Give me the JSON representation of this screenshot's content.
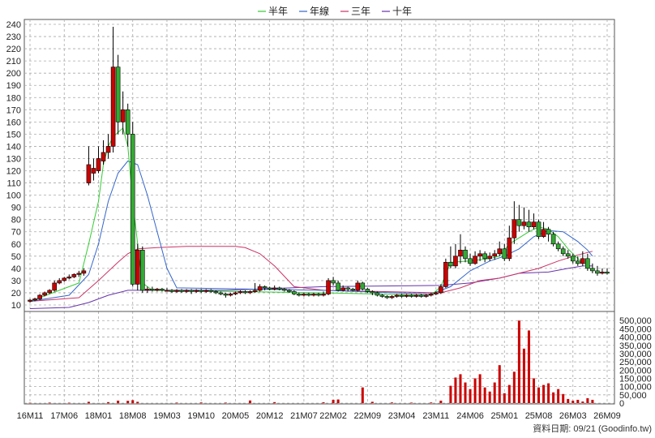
{
  "chart_data": {
    "type": "candlestick",
    "legend": [
      {
        "name": "半年",
        "color": "#33cc33"
      },
      {
        "name": "年線",
        "color": "#3366cc"
      },
      {
        "name": "三年",
        "color": "#cc3366"
      },
      {
        "name": "十年",
        "color": "#6633aa"
      }
    ],
    "legend_placement": "top-center",
    "grid": true,
    "price_axis": {
      "ylim": [
        0,
        240
      ],
      "ticks": [
        10,
        20,
        30,
        40,
        50,
        60,
        70,
        80,
        90,
        100,
        110,
        120,
        130,
        140,
        150,
        160,
        170,
        180,
        190,
        200,
        210,
        220,
        230,
        240
      ]
    },
    "volume_axis": {
      "ylim": [
        0,
        560000
      ],
      "ticks": [
        0,
        50000,
        100000,
        150000,
        200000,
        250000,
        300000,
        350000,
        400000,
        450000,
        500000
      ],
      "tick_labels": [
        "0",
        "50,000",
        "100,000",
        "150,000",
        "200,000",
        "250,000",
        "300,000",
        "350,000",
        "400,000",
        "450,000",
        "500,000"
      ]
    },
    "x_ticks": [
      "16M11",
      "17M06",
      "18M01",
      "18M08",
      "19M03",
      "19M10",
      "20M05",
      "20M12",
      "21M07",
      "22M02",
      "22M09",
      "23M04",
      "23M11",
      "24M06",
      "25M01",
      "25M08",
      "26M03",
      "26M09"
    ],
    "candles": [
      [
        "16M11",
        13,
        14,
        12,
        15
      ],
      [
        "16M12",
        14,
        15,
        13,
        16
      ],
      [
        "17M01",
        15,
        18,
        14,
        19
      ],
      [
        "17M02",
        18,
        20,
        17,
        21
      ],
      [
        "17M03",
        20,
        22,
        19,
        23
      ],
      [
        "17M04",
        22,
        28,
        21,
        30
      ],
      [
        "17M05",
        28,
        30,
        27,
        32
      ],
      [
        "17M06",
        30,
        32,
        29,
        33
      ],
      [
        "17M07",
        32,
        33,
        31,
        35
      ],
      [
        "17M08",
        33,
        35,
        32,
        36
      ],
      [
        "17M09",
        35,
        36,
        33,
        38
      ],
      [
        "17M10",
        36,
        38,
        34,
        40
      ],
      [
        "17M11",
        110,
        125,
        108,
        140
      ],
      [
        "17M12",
        118,
        122,
        112,
        130
      ],
      [
        "18M01",
        120,
        130,
        118,
        140
      ],
      [
        "18M02",
        128,
        135,
        125,
        145
      ],
      [
        "18M03",
        135,
        140,
        130,
        150
      ],
      [
        "18M04",
        140,
        205,
        135,
        238
      ],
      [
        "18M05",
        205,
        160,
        150,
        215
      ],
      [
        "18M06",
        160,
        170,
        150,
        185
      ],
      [
        "18M07",
        170,
        150,
        140,
        175
      ],
      [
        "18M08",
        150,
        27,
        25,
        160
      ],
      [
        "18M09",
        27,
        55,
        22,
        60
      ],
      [
        "18M10",
        55,
        22,
        20,
        58
      ],
      [
        "18M11",
        22,
        23,
        20,
        25
      ],
      [
        "18M12",
        23,
        22,
        21,
        25
      ],
      [
        "19M01",
        22,
        23,
        21,
        24
      ],
      [
        "19M02",
        23,
        22,
        21,
        24
      ],
      [
        "19M03",
        22,
        22,
        21,
        24
      ],
      [
        "19M04",
        22,
        21,
        20,
        23
      ],
      [
        "19M05",
        21,
        22,
        20,
        23
      ],
      [
        "19M06",
        22,
        21,
        20,
        23
      ],
      [
        "19M07",
        21,
        22,
        20,
        23
      ],
      [
        "19M08",
        22,
        21,
        19,
        23
      ],
      [
        "19M09",
        21,
        22,
        20,
        23
      ],
      [
        "19M10",
        22,
        21,
        20,
        23
      ],
      [
        "19M11",
        21,
        22,
        20,
        23
      ],
      [
        "19M12",
        22,
        21,
        20,
        23
      ],
      [
        "20M01",
        21,
        20,
        19,
        22
      ],
      [
        "20M02",
        20,
        19,
        18,
        21
      ],
      [
        "20M03",
        19,
        18,
        16,
        20
      ],
      [
        "20M04",
        18,
        19,
        17,
        20
      ],
      [
        "20M05",
        19,
        20,
        18,
        21
      ],
      [
        "20M06",
        20,
        21,
        19,
        22
      ],
      [
        "20M07",
        21,
        20,
        19,
        22
      ],
      [
        "20M08",
        20,
        21,
        19,
        22
      ],
      [
        "20M09",
        21,
        22,
        20,
        28
      ],
      [
        "20M10",
        22,
        25,
        21,
        27
      ],
      [
        "20M11",
        25,
        24,
        22,
        26
      ],
      [
        "20M12",
        24,
        23,
        22,
        25
      ],
      [
        "21M01",
        23,
        24,
        22,
        26
      ],
      [
        "21M02",
        24,
        23,
        22,
        25
      ],
      [
        "21M03",
        23,
        22,
        21,
        24
      ],
      [
        "21M04",
        22,
        21,
        20,
        23
      ],
      [
        "21M05",
        21,
        19,
        18,
        22
      ],
      [
        "21M06",
        19,
        18,
        17,
        20
      ],
      [
        "21M07",
        18,
        19,
        17,
        20
      ],
      [
        "21M08",
        19,
        18,
        17,
        20
      ],
      [
        "21M09",
        18,
        19,
        17,
        20
      ],
      [
        "21M10",
        19,
        18,
        17,
        20
      ],
      [
        "21M11",
        18,
        19,
        17,
        21
      ],
      [
        "21M12",
        19,
        30,
        18,
        32
      ],
      [
        "22M01",
        30,
        28,
        26,
        33
      ],
      [
        "22M02",
        28,
        22,
        21,
        30
      ],
      [
        "22M03",
        22,
        24,
        21,
        26
      ],
      [
        "22M04",
        24,
        23,
        21,
        25
      ],
      [
        "22M05",
        23,
        22,
        21,
        24
      ],
      [
        "22M06",
        22,
        28,
        21,
        30
      ],
      [
        "22M07",
        28,
        23,
        22,
        29
      ],
      [
        "22M08",
        23,
        21,
        20,
        24
      ],
      [
        "22M09",
        21,
        20,
        18,
        22
      ],
      [
        "22M10",
        20,
        18,
        17,
        21
      ],
      [
        "22M11",
        18,
        17,
        16,
        19
      ],
      [
        "22M12",
        17,
        16,
        15,
        18
      ],
      [
        "23M01",
        16,
        17,
        15,
        18
      ],
      [
        "23M02",
        17,
        18,
        16,
        19
      ],
      [
        "23M03",
        18,
        17,
        16,
        19
      ],
      [
        "23M04",
        17,
        18,
        16,
        19
      ],
      [
        "23M05",
        18,
        17,
        16,
        19
      ],
      [
        "23M06",
        17,
        18,
        16,
        19
      ],
      [
        "23M07",
        18,
        17,
        16,
        19
      ],
      [
        "23M08",
        17,
        18,
        16,
        19
      ],
      [
        "23M09",
        18,
        19,
        17,
        20
      ],
      [
        "23M10",
        19,
        20,
        18,
        21
      ],
      [
        "23M11",
        20,
        25,
        19,
        27
      ],
      [
        "23M12",
        25,
        45,
        24,
        48
      ],
      [
        "24M01",
        45,
        42,
        40,
        58
      ],
      [
        "24M02",
        42,
        50,
        40,
        60
      ],
      [
        "24M03",
        50,
        55,
        44,
        68
      ],
      [
        "24M04",
        55,
        48,
        45,
        58
      ],
      [
        "24M05",
        48,
        44,
        42,
        52
      ],
      [
        "24M06",
        44,
        50,
        43,
        54
      ],
      [
        "24M07",
        50,
        52,
        46,
        55
      ],
      [
        "24M08",
        52,
        48,
        45,
        54
      ],
      [
        "24M09",
        48,
        50,
        46,
        53
      ],
      [
        "24M10",
        50,
        52,
        47,
        55
      ],
      [
        "24M11",
        52,
        56,
        50,
        62
      ],
      [
        "24M12",
        56,
        48,
        46,
        60
      ],
      [
        "25M01",
        48,
        65,
        46,
        75
      ],
      [
        "25M02",
        65,
        80,
        60,
        95
      ],
      [
        "25M03",
        80,
        75,
        70,
        92
      ],
      [
        "25M04",
        75,
        78,
        72,
        90
      ],
      [
        "25M05",
        78,
        74,
        70,
        88
      ],
      [
        "25M06",
        74,
        78,
        72,
        85
      ],
      [
        "25M07",
        78,
        66,
        64,
        80
      ],
      [
        "25M08",
        66,
        72,
        65,
        78
      ],
      [
        "25M09",
        72,
        68,
        62,
        74
      ],
      [
        "25M10",
        68,
        60,
        58,
        70
      ],
      [
        "25M11",
        60,
        56,
        54,
        62
      ],
      [
        "25M12",
        56,
        52,
        50,
        58
      ],
      [
        "26M01",
        52,
        50,
        48,
        55
      ],
      [
        "26M02",
        50,
        46,
        44,
        52
      ],
      [
        "26M03",
        46,
        44,
        42,
        50
      ],
      [
        "26M04",
        44,
        48,
        42,
        54
      ],
      [
        "26M05",
        48,
        40,
        38,
        52
      ],
      [
        "26M06",
        40,
        38,
        36,
        44
      ],
      [
        "26M07",
        38,
        36,
        34,
        42
      ],
      [
        "26M08",
        36,
        37,
        35,
        40
      ],
      [
        "26M09",
        37,
        36,
        35,
        40
      ]
    ],
    "ma_half_year": [
      [
        0,
        13
      ],
      [
        8,
        25
      ],
      [
        10,
        28
      ],
      [
        12,
        60
      ],
      [
        14,
        95
      ],
      [
        15,
        125
      ],
      [
        16,
        140
      ],
      [
        17,
        148
      ],
      [
        19,
        155
      ],
      [
        20,
        140
      ],
      [
        21,
        95
      ],
      [
        22,
        60
      ],
      [
        23,
        28
      ],
      [
        25,
        22
      ],
      [
        60,
        20
      ],
      [
        82,
        18
      ],
      [
        84,
        25
      ],
      [
        86,
        45
      ],
      [
        90,
        46
      ],
      [
        94,
        48
      ],
      [
        96,
        50
      ],
      [
        98,
        60
      ],
      [
        102,
        70
      ],
      [
        104,
        74
      ],
      [
        106,
        72
      ],
      [
        108,
        66
      ],
      [
        110,
        56
      ],
      [
        112,
        48
      ],
      [
        114,
        42
      ],
      [
        115,
        38
      ]
    ],
    "ma_year": [
      [
        0,
        13
      ],
      [
        8,
        18
      ],
      [
        12,
        35
      ],
      [
        14,
        60
      ],
      [
        16,
        95
      ],
      [
        18,
        118
      ],
      [
        20,
        128
      ],
      [
        22,
        125
      ],
      [
        24,
        100
      ],
      [
        26,
        70
      ],
      [
        28,
        40
      ],
      [
        30,
        24
      ],
      [
        60,
        22
      ],
      [
        82,
        19
      ],
      [
        86,
        25
      ],
      [
        90,
        38
      ],
      [
        94,
        46
      ],
      [
        97,
        50
      ],
      [
        100,
        56
      ],
      [
        103,
        66
      ],
      [
        106,
        71
      ],
      [
        109,
        70
      ],
      [
        112,
        62
      ],
      [
        114,
        55
      ],
      [
        115,
        50
      ]
    ],
    "ma_three_year": [
      [
        0,
        13
      ],
      [
        10,
        16
      ],
      [
        14,
        30
      ],
      [
        18,
        45
      ],
      [
        20,
        52
      ],
      [
        22,
        56
      ],
      [
        26,
        57
      ],
      [
        32,
        58
      ],
      [
        38,
        58
      ],
      [
        42,
        58
      ],
      [
        44,
        57
      ],
      [
        47,
        52
      ],
      [
        50,
        42
      ],
      [
        54,
        25
      ],
      [
        60,
        22
      ],
      [
        84,
        20
      ],
      [
        88,
        24
      ],
      [
        92,
        30
      ],
      [
        96,
        32
      ],
      [
        100,
        36
      ],
      [
        104,
        40
      ],
      [
        108,
        46
      ],
      [
        112,
        51
      ],
      [
        115,
        54
      ]
    ],
    "ma_ten_year": [
      [
        0,
        7
      ],
      [
        8,
        8
      ],
      [
        12,
        12
      ],
      [
        16,
        18
      ],
      [
        20,
        22
      ],
      [
        40,
        22
      ],
      [
        60,
        25
      ],
      [
        84,
        26
      ],
      [
        90,
        28
      ],
      [
        96,
        32
      ],
      [
        100,
        36
      ],
      [
        106,
        37
      ],
      [
        110,
        40
      ],
      [
        113,
        42
      ],
      [
        115,
        42
      ]
    ],
    "volume": [
      [
        0,
        2000
      ],
      [
        4,
        3000
      ],
      [
        8,
        2500
      ],
      [
        12,
        8000
      ],
      [
        16,
        6000
      ],
      [
        18,
        15000
      ],
      [
        20,
        14000
      ],
      [
        21,
        18000
      ],
      [
        22,
        8000
      ],
      [
        30,
        3000
      ],
      [
        35,
        4000
      ],
      [
        40,
        3000
      ],
      [
        45,
        16000
      ],
      [
        50,
        6000
      ],
      [
        60,
        5000
      ],
      [
        62,
        20000
      ],
      [
        63,
        22000
      ],
      [
        68,
        95000
      ],
      [
        70,
        8000
      ],
      [
        74,
        4000
      ],
      [
        78,
        3000
      ],
      [
        82,
        4000
      ],
      [
        84,
        15000
      ],
      [
        86,
        105000
      ],
      [
        87,
        155000
      ],
      [
        88,
        175000
      ],
      [
        89,
        125000
      ],
      [
        90,
        85000
      ],
      [
        91,
        150000
      ],
      [
        92,
        175000
      ],
      [
        93,
        95000
      ],
      [
        94,
        70000
      ],
      [
        95,
        125000
      ],
      [
        96,
        230000
      ],
      [
        97,
        60000
      ],
      [
        98,
        110000
      ],
      [
        99,
        190000
      ],
      [
        100,
        500000
      ],
      [
        101,
        330000
      ],
      [
        102,
        440000
      ],
      [
        103,
        150000
      ],
      [
        104,
        95000
      ],
      [
        105,
        110000
      ],
      [
        106,
        120000
      ],
      [
        107,
        65000
      ],
      [
        108,
        85000
      ],
      [
        109,
        55000
      ],
      [
        110,
        25000
      ],
      [
        111,
        15000
      ],
      [
        112,
        20000
      ],
      [
        113,
        10000
      ],
      [
        114,
        30000
      ],
      [
        115,
        20000
      ]
    ],
    "footer": "資料日期: 09/21 (Goodinfo.tw)"
  }
}
